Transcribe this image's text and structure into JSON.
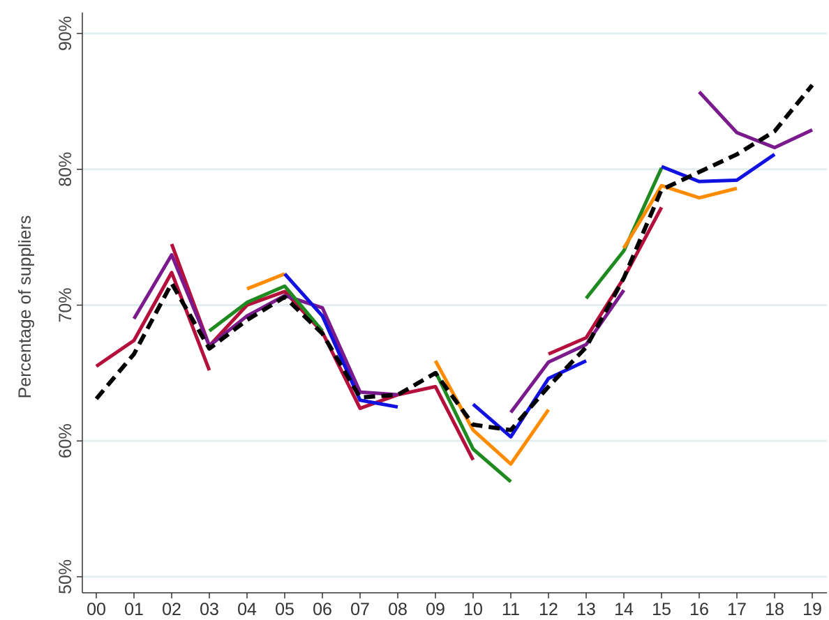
{
  "chart_data": {
    "type": "line",
    "title": "",
    "xlabel": "",
    "ylabel": "Percentage of suppliers",
    "x_categories": [
      "00",
      "01",
      "02",
      "03",
      "04",
      "05",
      "06",
      "07",
      "08",
      "09",
      "10",
      "11",
      "12",
      "13",
      "14",
      "15",
      "16",
      "17",
      "18",
      "19"
    ],
    "y_range": [
      50,
      90
    ],
    "y_ticks": [
      50,
      60,
      70,
      80,
      90
    ],
    "y_tick_labels": [
      "50%",
      "60%",
      "70%",
      "80%",
      "90%"
    ],
    "grid": "horizontal",
    "colors": {
      "grid": "#e3eef0",
      "axis": "#333333"
    },
    "series": [
      {
        "color": "#000000",
        "dashed": true,
        "points": [
          [
            0,
            63.1
          ],
          [
            1,
            66.4
          ],
          [
            2,
            71.6
          ],
          [
            3,
            66.8
          ],
          [
            4,
            68.9
          ],
          [
            5,
            70.6
          ],
          [
            6,
            67.9
          ],
          [
            7,
            63.2
          ],
          [
            8,
            63.4
          ],
          [
            9,
            65.0
          ],
          [
            10,
            61.2
          ],
          [
            11,
            60.8
          ],
          [
            12,
            64.0
          ],
          [
            13,
            66.9
          ],
          [
            14,
            72.0
          ],
          [
            15,
            78.5
          ],
          [
            16,
            79.8
          ],
          [
            17,
            81.1
          ],
          [
            18,
            82.8
          ],
          [
            19,
            86.2
          ]
        ]
      },
      {
        "color": "#b5103c",
        "points": [
          [
            0,
            65.5
          ],
          [
            1,
            67.4
          ],
          [
            2,
            72.4
          ],
          [
            3,
            65.2
          ]
        ]
      },
      {
        "color": "#b5103c",
        "points": [
          [
            2,
            74.5
          ],
          [
            3,
            67.0
          ],
          [
            4,
            70.0
          ],
          [
            5,
            71.0
          ],
          [
            6,
            68.0
          ],
          [
            7,
            62.4
          ],
          [
            8,
            63.4
          ],
          [
            9,
            64.0
          ],
          [
            10,
            58.6
          ]
        ]
      },
      {
        "color": "#b5103c",
        "points": [
          [
            12,
            66.4
          ],
          [
            13,
            67.6
          ],
          [
            14,
            72.0
          ],
          [
            15,
            77.2
          ]
        ]
      },
      {
        "color": "#7a1a8c",
        "points": [
          [
            1,
            69.0
          ],
          [
            2,
            73.7
          ],
          [
            3,
            67.0
          ],
          [
            4,
            69.2
          ],
          [
            5,
            70.7
          ],
          [
            6,
            69.8
          ],
          [
            7,
            63.6
          ],
          [
            8,
            63.4
          ]
        ]
      },
      {
        "color": "#7a1a8c",
        "points": [
          [
            11,
            62.1
          ],
          [
            12,
            65.8
          ],
          [
            13,
            67.1
          ],
          [
            14,
            71.1
          ]
        ]
      },
      {
        "color": "#7a1a8c",
        "points": [
          [
            16,
            85.7
          ],
          [
            17,
            82.7
          ],
          [
            18,
            81.6
          ],
          [
            19,
            82.9
          ]
        ]
      },
      {
        "color": "#1f8a1f",
        "points": [
          [
            3,
            68.1
          ],
          [
            4,
            70.2
          ],
          [
            5,
            71.4
          ],
          [
            6,
            68.1
          ]
        ]
      },
      {
        "color": "#1f8a1f",
        "points": [
          [
            9,
            65.1
          ],
          [
            10,
            59.4
          ],
          [
            11,
            57.0
          ]
        ]
      },
      {
        "color": "#1f8a1f",
        "points": [
          [
            13,
            70.5
          ],
          [
            14,
            74.0
          ],
          [
            15,
            80.1
          ]
        ]
      },
      {
        "color": "#ff8c00",
        "points": [
          [
            4,
            71.2
          ],
          [
            5,
            72.3
          ]
        ]
      },
      {
        "color": "#ff8c00",
        "points": [
          [
            9,
            65.9
          ],
          [
            10,
            60.8
          ],
          [
            11,
            58.3
          ],
          [
            12,
            62.3
          ]
        ]
      },
      {
        "color": "#ff8c00",
        "points": [
          [
            14,
            74.2
          ],
          [
            15,
            78.8
          ],
          [
            16,
            77.9
          ],
          [
            17,
            78.6
          ]
        ]
      },
      {
        "color": "#1212e0",
        "points": [
          [
            5,
            72.3
          ],
          [
            6,
            69.2
          ],
          [
            7,
            63.0
          ],
          [
            8,
            62.5
          ]
        ]
      },
      {
        "color": "#1212e0",
        "points": [
          [
            10,
            62.7
          ],
          [
            11,
            60.3
          ],
          [
            12,
            64.6
          ],
          [
            13,
            65.9
          ]
        ]
      },
      {
        "color": "#1212e0",
        "points": [
          [
            15,
            80.2
          ],
          [
            16,
            79.1
          ],
          [
            17,
            79.2
          ],
          [
            18,
            81.1
          ]
        ]
      }
    ]
  }
}
